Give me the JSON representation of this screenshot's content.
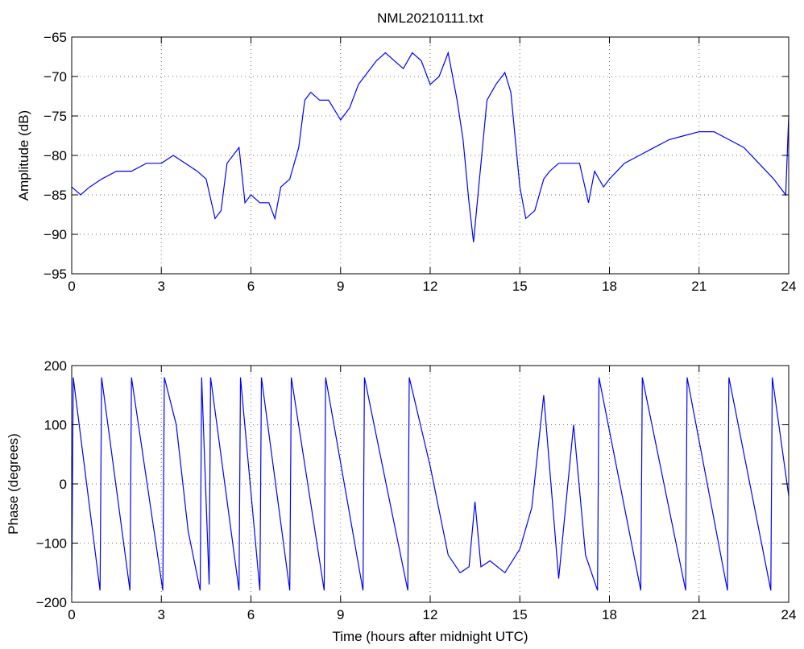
{
  "colors": {
    "series": "#0000ff",
    "axes": "#000000",
    "background": "#ffffff"
  },
  "chart_data": [
    {
      "type": "line",
      "title": "NML20210111.txt",
      "xlabel": "",
      "ylabel": "Amplitude (dB)",
      "xlim": [
        0,
        24
      ],
      "ylim": [
        -95,
        -65
      ],
      "xticks": [
        0,
        3,
        6,
        9,
        12,
        15,
        18,
        21,
        24
      ],
      "yticks": [
        -95,
        -90,
        -85,
        -80,
        -75,
        -70,
        -65
      ],
      "grid": true,
      "series": [
        {
          "x": [
            0,
            0.3,
            0.6,
            1,
            1.5,
            2,
            2.5,
            3,
            3.4,
            3.8,
            4.2,
            4.5,
            4.8,
            5.0,
            5.2,
            5.6,
            5.8,
            6.0,
            6.3,
            6.6,
            6.8,
            7.0,
            7.3,
            7.6,
            7.8,
            8.0,
            8.3,
            8.6,
            9.0,
            9.3,
            9.6,
            9.9,
            10.2,
            10.5,
            10.8,
            11.1,
            11.4,
            11.7,
            12.0,
            12.3,
            12.6,
            12.9,
            13.1,
            13.3,
            13.45,
            13.6,
            13.9,
            14.2,
            14.5,
            14.7,
            15.0,
            15.2,
            15.5,
            15.8,
            16.0,
            16.3,
            16.7,
            17.0,
            17.3,
            17.5,
            17.8,
            18.0,
            18.5,
            19.0,
            19.5,
            20.0,
            20.5,
            21.0,
            21.5,
            22.0,
            22.5,
            23.0,
            23.5,
            23.9,
            24.0
          ],
          "y": [
            -84,
            -85,
            -84,
            -83,
            -82,
            -82,
            -81,
            -81,
            -80,
            -81,
            -82,
            -83,
            -88,
            -87,
            -81,
            -79,
            -86,
            -85,
            -86,
            -86,
            -88,
            -84,
            -83,
            -79,
            -73,
            -72,
            -73,
            -73,
            -75.5,
            -74,
            -71,
            -69.5,
            -68,
            -67,
            -68,
            -69,
            -67,
            -68,
            -71,
            -70,
            -67,
            -73,
            -78,
            -86,
            -91,
            -85,
            -73,
            -71,
            -69.5,
            -72,
            -84,
            -88,
            -87,
            -83,
            -82,
            -81,
            -81,
            -81,
            -86,
            -82,
            -84,
            -83,
            -81,
            -80,
            -79,
            -78,
            -77.5,
            -77,
            -77,
            -78,
            -79,
            -81,
            -83,
            -85,
            -75
          ]
        }
      ]
    },
    {
      "type": "line",
      "title": "",
      "xlabel": "Time (hours after midnight UTC)",
      "ylabel": "Phase (degrees)",
      "xlim": [
        0,
        24
      ],
      "ylim": [
        -200,
        200
      ],
      "xticks": [
        0,
        3,
        6,
        9,
        12,
        15,
        18,
        21,
        24
      ],
      "yticks": [
        -200,
        -100,
        0,
        100,
        200
      ],
      "grid": true,
      "series": [
        {
          "x": [
            0,
            0.05,
            0.95,
            1.0,
            1.95,
            2.0,
            3.05,
            3.1,
            3.5,
            3.9,
            4.3,
            4.35,
            4.6,
            4.65,
            5.6,
            5.65,
            6.3,
            6.35,
            7.3,
            7.35,
            8.45,
            8.5,
            9.75,
            9.8,
            11.25,
            11.3,
            12.0,
            12.6,
            13.0,
            13.3,
            13.5,
            13.7,
            14.0,
            14.5,
            15.0,
            15.4,
            15.8,
            16.3,
            16.8,
            17.2,
            17.6,
            17.65,
            19.05,
            19.1,
            20.55,
            20.6,
            21.95,
            22.0,
            23.4,
            23.45,
            24.0
          ],
          "y": [
            -180,
            180,
            -180,
            180,
            -180,
            180,
            -180,
            180,
            100,
            -80,
            -180,
            180,
            -170,
            180,
            -180,
            180,
            -180,
            180,
            -180,
            180,
            -180,
            180,
            -180,
            180,
            -180,
            180,
            30,
            -120,
            -150,
            -140,
            -30,
            -140,
            -130,
            -150,
            -110,
            -40,
            150,
            -160,
            100,
            -120,
            -180,
            180,
            -180,
            180,
            -180,
            180,
            -180,
            180,
            -180,
            180,
            -20
          ]
        }
      ]
    }
  ]
}
